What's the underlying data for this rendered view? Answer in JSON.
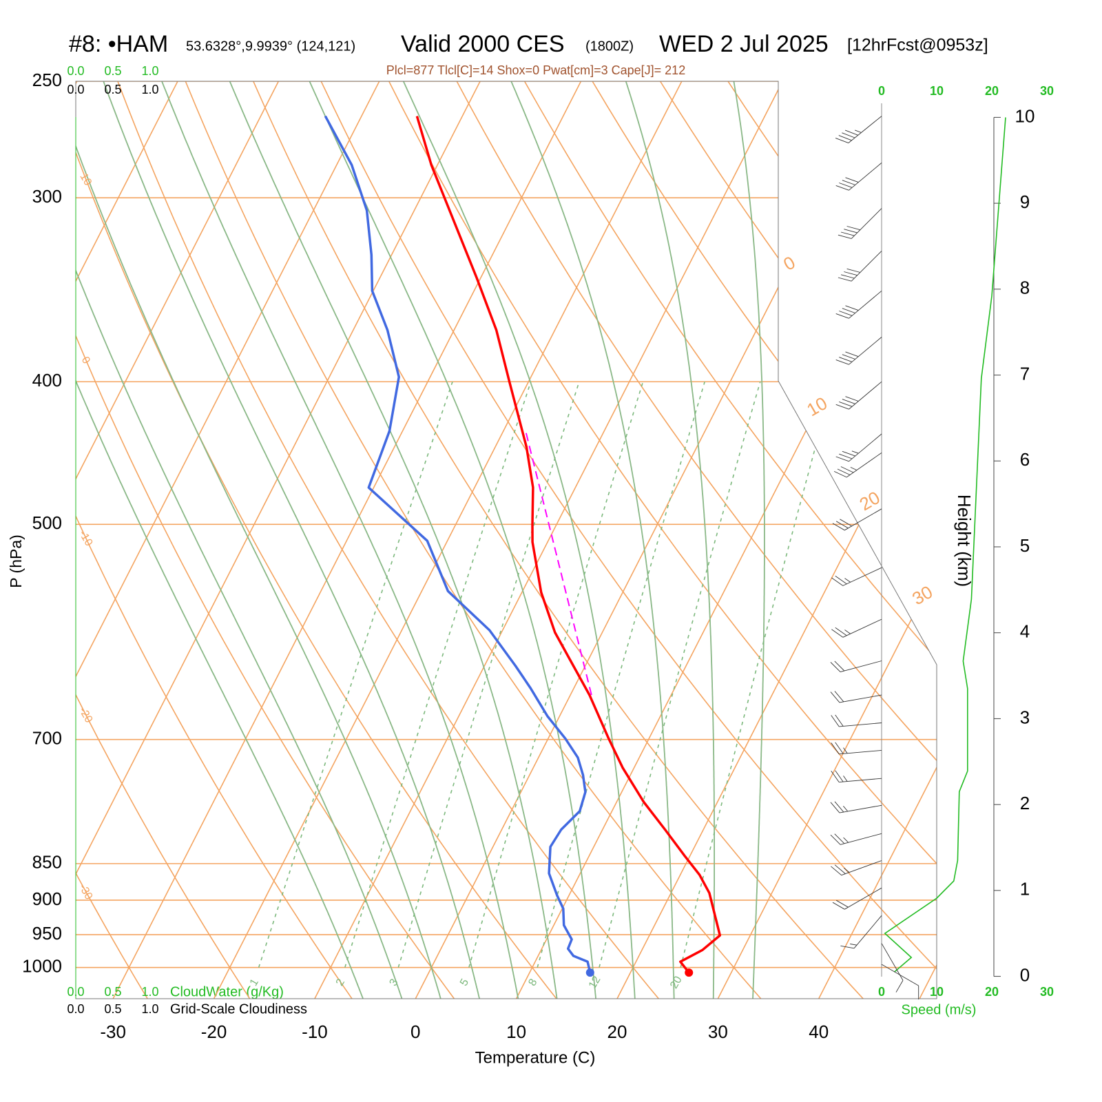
{
  "chart_data": {
    "type": "skewt",
    "title": {
      "station": "#8: •HAM",
      "coords": "53.6328°,9.9939° (124,121)",
      "valid": "Valid 2000 CES",
      "utc": "(1800Z)",
      "date": "WED 2 Jul 2025",
      "forecast": "[12hrFcst@0953z]"
    },
    "subtitle": "Plcl=877 Tlcl[C]=14 Shox=0 Pwat[cm]=3 Cape[J]= 212",
    "xlabel": "Temperature (C)",
    "ylabel": "P (hPa)",
    "xlim": [
      -33.7,
      51.7
    ],
    "xticks": [
      -30,
      -20,
      -10,
      0,
      10,
      20,
      30,
      40
    ],
    "ylim": [
      1050,
      250
    ],
    "yticks": [
      250,
      300,
      400,
      500,
      700,
      850,
      900,
      950,
      1000
    ],
    "log_y": true,
    "temperature": {
      "color": "#ff0000",
      "pressure": [
        1008,
        991,
        973,
        951,
        890,
        865,
        840,
        806,
        772,
        732,
        699,
        653,
        619,
        592,
        556,
        514,
        500,
        472,
        443,
        400,
        369,
        340,
        307,
        285,
        264
      ],
      "values": [
        25.8,
        24.4,
        26.0,
        27.0,
        23.8,
        21.9,
        19.5,
        16.2,
        12.7,
        8.9,
        6.0,
        1.9,
        -1.7,
        -4.7,
        -8.1,
        -11.5,
        -12.4,
        -14.2,
        -16.9,
        -21.9,
        -25.8,
        -30.4,
        -36.3,
        -40.6,
        -44.5
      ]
    },
    "dewpoint": {
      "color": "#4169e1",
      "pressure": [
        1008,
        991,
        982,
        971,
        957,
        936,
        912,
        893,
        863,
        828,
        806,
        783,
        760,
        740,
        720,
        699,
        675,
        646,
        624,
        590,
        555,
        513,
        472,
        432,
        397,
        369,
        347,
        328,
        306,
        285,
        264
      ],
      "values": [
        16.0,
        15.2,
        13.5,
        12.6,
        12.5,
        11.0,
        10.1,
        8.8,
        6.9,
        5.7,
        5.9,
        6.8,
        6.4,
        5.3,
        3.9,
        1.7,
        -1.2,
        -4.3,
        -6.9,
        -11.3,
        -17.4,
        -22.0,
        -30.5,
        -31.3,
        -33.1,
        -36.6,
        -40.1,
        -42.0,
        -44.7,
        -48.5,
        -53.6
      ]
    },
    "parcel": {
      "color": "#ff00ff",
      "pressure": [
        653,
        432
      ],
      "values": [
        2.1,
        -17.8
      ]
    },
    "isotherm_labels": [
      0,
      10,
      20,
      30
    ],
    "dry_adiabat_labels": [
      10,
      0,
      -10,
      -20,
      -30
    ],
    "mixing_ratio_labels": [
      1,
      2,
      3,
      5,
      8,
      12,
      20
    ],
    "height_axis": {
      "label": "Height (km)",
      "lim": [
        -0.26,
        10.42
      ],
      "ticks": [
        0,
        1,
        2,
        3,
        4,
        5,
        6,
        7,
        8,
        9,
        10
      ]
    },
    "speed_axis": {
      "label": "Speed (m/s)",
      "lim": [
        0,
        30
      ],
      "ticks": [
        0,
        10,
        20,
        30
      ]
    },
    "wind_speed": {
      "color": "#22bb22",
      "height": [
        0.05,
        0.22,
        0.5,
        0.91,
        1.11,
        1.35,
        2.15,
        2.39,
        3.35,
        3.67,
        4.39,
        6.96,
        7.92,
        10.0
      ],
      "values": [
        2.3,
        5.4,
        0.6,
        10.0,
        13.1,
        13.8,
        14.1,
        15.6,
        15.6,
        14.8,
        16.3,
        18.1,
        20.0,
        22.5
      ]
    },
    "wind_barbs": {
      "pressure": [
        264,
        284,
        305,
        326,
        347,
        373,
        400,
        434,
        447,
        488,
        535,
        580,
        619,
        653,
        682,
        712,
        744,
        776,
        811,
        846,
        883,
        922,
        963,
        995
      ],
      "direction": [
        231,
        230,
        225,
        225,
        230,
        230,
        230,
        230,
        235,
        240,
        245,
        245,
        255,
        260,
        265,
        265,
        265,
        260,
        255,
        250,
        240,
        220,
        150,
        120
      ],
      "speed": [
        45,
        40,
        40,
        40,
        40,
        40,
        40,
        35,
        35,
        30,
        25,
        25,
        20,
        20,
        20,
        25,
        25,
        25,
        25,
        25,
        20,
        15,
        10,
        10
      ]
    },
    "cloud_water": {
      "label": "CloudWater (g/Kg)",
      "ticks": [
        {
          "value": 0,
          "label": "0.0"
        },
        {
          "value": 0.5,
          "label": "0.5"
        },
        {
          "value": 1,
          "label": "1.0"
        }
      ]
    },
    "cloudiness": {
      "label": "Grid-Scale Cloudiness",
      "ticks": [
        {
          "value": 0,
          "label": "0.0"
        },
        {
          "value": 0.5,
          "label": "0.5"
        },
        {
          "value": 1,
          "label": "1.0"
        }
      ]
    }
  }
}
